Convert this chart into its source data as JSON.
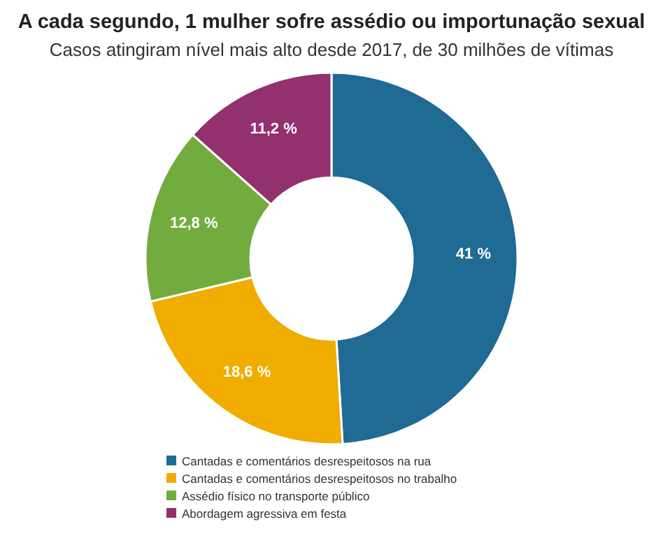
{
  "chart_data": {
    "type": "donut",
    "title": "A cada segundo, 1 mulher sofre assédio ou importunação sexual",
    "subtitle": "Casos atingiram nível mais alto desde 2017, de 30 milhões de vítimas",
    "categories": [
      "Cantadas e comentários desrespeitosos na rua",
      "Cantadas e comentários desrespeitosos no trabalho",
      "Assédio físico no transporte público",
      "Abordagem agressiva em festa"
    ],
    "values": [
      41,
      18.6,
      12.8,
      11.2
    ],
    "value_labels": [
      "41 %",
      "18,6 %",
      "12,8 %",
      "11,2 %"
    ],
    "colors": [
      "#1f6b94",
      "#f0ad00",
      "#72ac3f",
      "#93306e"
    ],
    "legend": "bottom"
  }
}
